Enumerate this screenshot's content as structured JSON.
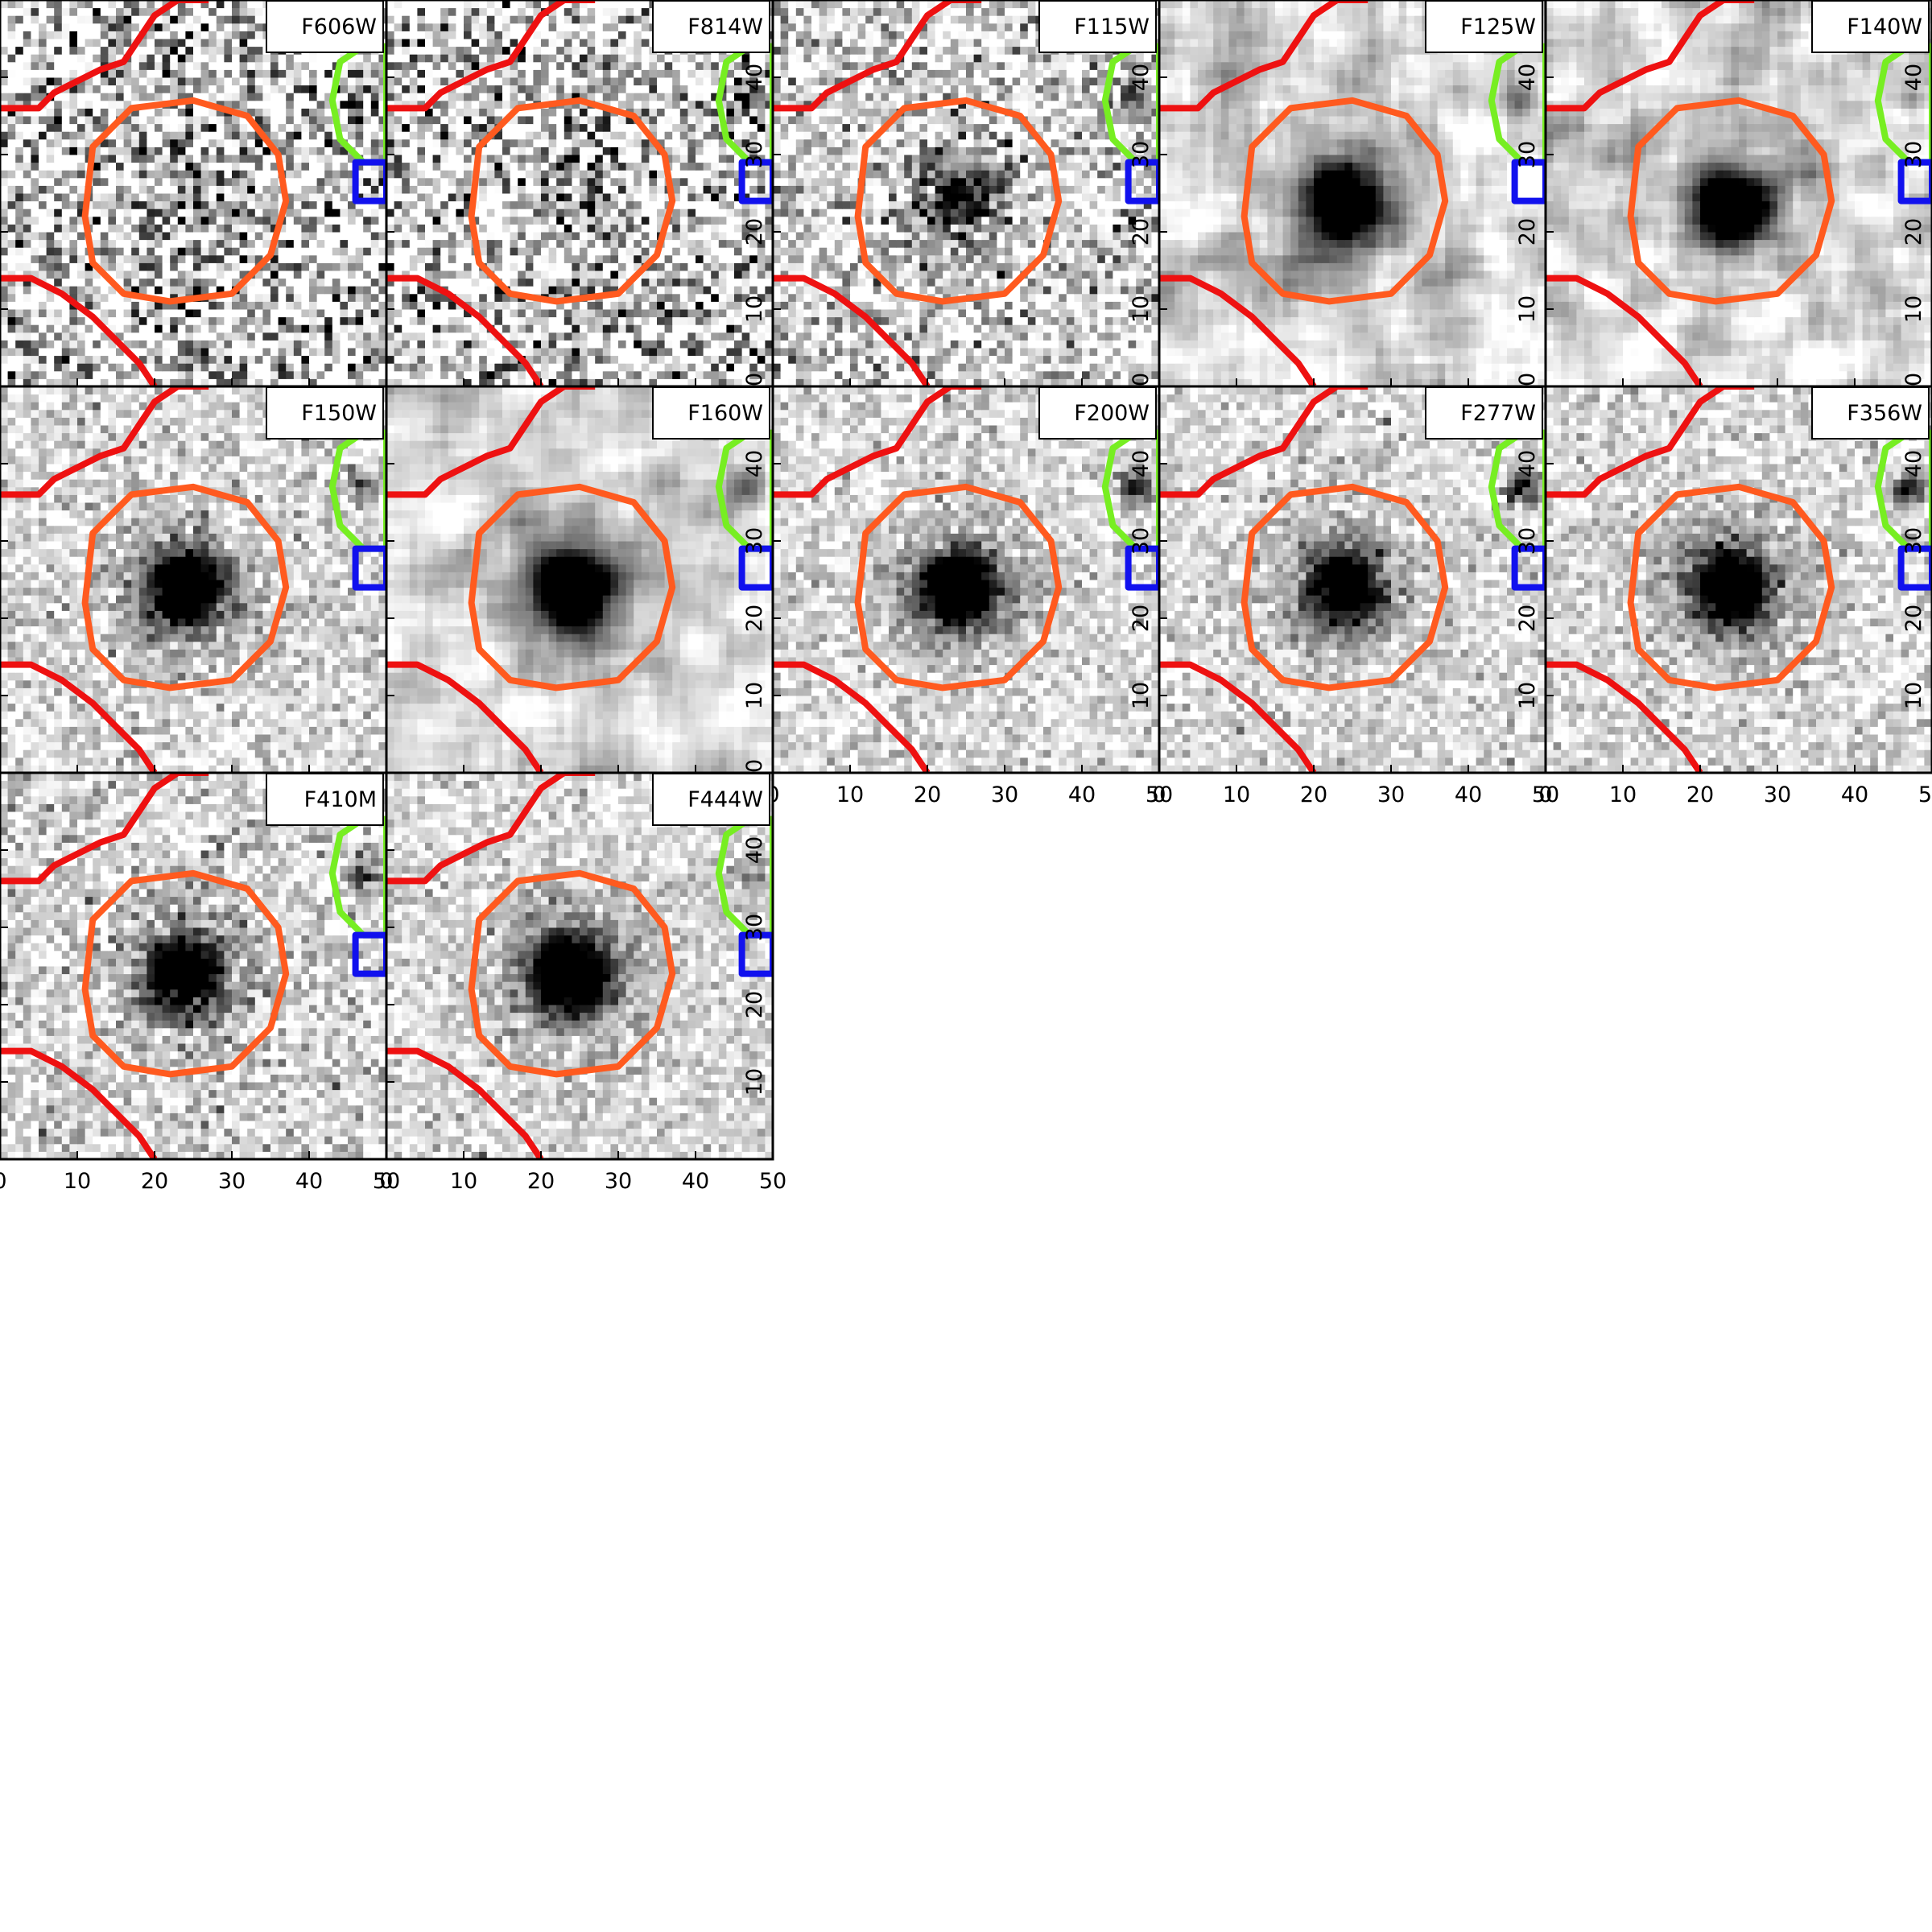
{
  "figure": {
    "type": "multi-band image cutout grid",
    "colormap": "grayscale",
    "panels": [
      {
        "band": "F606W",
        "show_xticks": false,
        "show_yticks": false,
        "noise": 0.95,
        "sigma": 1.0,
        "blur": 0,
        "source": 0.15,
        "comp": 0.7
      },
      {
        "band": "F814W",
        "show_xticks": false,
        "show_yticks": true,
        "noise": 0.9,
        "sigma": 1.0,
        "blur": 0,
        "source": 0.2,
        "comp": 1.0
      },
      {
        "band": "F115W",
        "show_xticks": false,
        "show_yticks": true,
        "noise": 0.6,
        "sigma": 1.0,
        "blur": 0,
        "source": 0.6,
        "comp": 0.7
      },
      {
        "band": "F125W",
        "show_xticks": false,
        "show_yticks": true,
        "noise": 0.55,
        "sigma": 1.0,
        "blur": 2,
        "source": 1.2,
        "comp": 0.4
      },
      {
        "band": "F140W",
        "show_xticks": false,
        "show_yticks": true,
        "noise": 0.55,
        "sigma": 1.0,
        "blur": 2,
        "source": 1.1,
        "comp": 0.4
      },
      {
        "band": "F150W",
        "show_xticks": false,
        "show_yticks": false,
        "noise": 0.35,
        "sigma": 1.0,
        "blur": 0,
        "source": 1.1,
        "comp": 0.6
      },
      {
        "band": "F160W",
        "show_xticks": false,
        "show_yticks": true,
        "noise": 0.45,
        "sigma": 1.0,
        "blur": 2,
        "source": 1.3,
        "comp": 0.5
      },
      {
        "band": "F200W",
        "show_xticks": true,
        "show_yticks": true,
        "noise": 0.3,
        "sigma": 1.0,
        "blur": 0,
        "source": 1.1,
        "comp": 1.0
      },
      {
        "band": "F277W",
        "show_xticks": true,
        "show_yticks": true,
        "noise": 0.3,
        "sigma": 1.0,
        "blur": 0,
        "source": 1.0,
        "comp": 1.0
      },
      {
        "band": "F356W",
        "show_xticks": true,
        "show_yticks": true,
        "noise": 0.3,
        "sigma": 1.0,
        "blur": 0,
        "source": 1.1,
        "comp": 1.0
      },
      {
        "band": "F410M",
        "show_xticks": true,
        "show_yticks": false,
        "noise": 0.4,
        "sigma": 1.0,
        "blur": 0,
        "source": 1.1,
        "comp": 0.7
      },
      {
        "band": "F444W",
        "show_xticks": true,
        "show_yticks": true,
        "noise": 0.3,
        "sigma": 1.0,
        "blur": 0,
        "source": 1.3,
        "comp": 0.5
      }
    ],
    "axis": {
      "x_range": [
        0,
        50
      ],
      "y_range": [
        0,
        50
      ],
      "ticks": [
        0,
        10,
        20,
        30,
        40,
        50
      ],
      "tick_labels": [
        "0",
        "10",
        "20",
        "30",
        "40",
        "50"
      ]
    },
    "source_position": [
      24,
      24
    ],
    "contours": [
      {
        "color": "#ff5a1f",
        "points": [
          [
            12,
            16
          ],
          [
            16,
            12
          ],
          [
            22,
            11
          ],
          [
            30,
            12
          ],
          [
            35,
            17
          ],
          [
            37,
            24
          ],
          [
            36,
            30
          ],
          [
            32,
            35
          ],
          [
            25,
            37
          ],
          [
            17,
            36
          ],
          [
            12,
            31
          ],
          [
            11,
            22
          ]
        ]
      },
      {
        "color": "#ee1111",
        "points": [
          [
            0,
            36
          ],
          [
            5,
            36
          ],
          [
            7,
            38
          ],
          [
            9,
            39
          ],
          [
            13,
            41
          ],
          [
            16,
            42
          ],
          [
            18,
            45
          ],
          [
            20,
            48
          ],
          [
            23,
            50
          ],
          [
            27,
            50
          ]
        ]
      },
      {
        "color": "#ee1111",
        "points": [
          [
            0,
            14
          ],
          [
            4,
            14
          ],
          [
            8,
            12
          ],
          [
            12,
            9
          ],
          [
            15,
            6
          ],
          [
            18,
            3
          ],
          [
            20,
            0
          ]
        ]
      },
      {
        "color": "#77ee22",
        "points": [
          [
            44,
            42
          ],
          [
            47,
            44
          ],
          [
            50,
            44
          ],
          [
            50,
            29
          ],
          [
            47,
            29
          ],
          [
            44,
            32
          ],
          [
            43,
            37
          ]
        ]
      },
      {
        "color": "#1111ee",
        "points": [
          [
            46,
            29
          ],
          [
            50,
            29
          ],
          [
            50,
            24
          ],
          [
            46,
            24
          ]
        ]
      }
    ]
  }
}
